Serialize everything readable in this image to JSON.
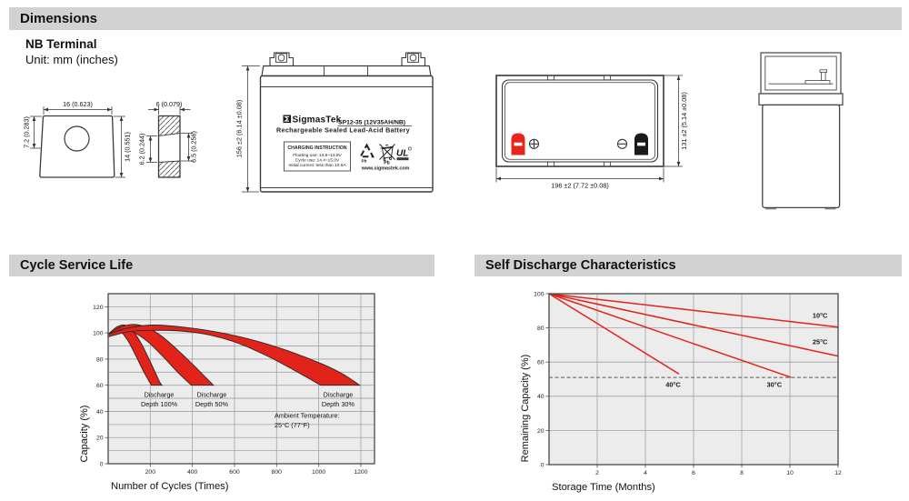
{
  "sections": {
    "dimensions_title": "Dimensions",
    "terminal_type": "NB Terminal",
    "unit_note": "Unit: mm (inches)",
    "cycle_life_title": "Cycle Service Life",
    "self_discharge_title": "Self Discharge Characteristics"
  },
  "colors": {
    "header_bar": "#d2d2d2",
    "chart_red": "#e2231a",
    "red_terminal": "#e8251d",
    "black_terminal": "#1a1a1a",
    "plot_bg": "#ececec",
    "grid_line": "#a3a3a3",
    "plot_border": "#4a4a4a"
  },
  "terminal_drawing": {
    "front": {
      "width_label": "16 (0.623)",
      "left_label": "7.2 (0.283)",
      "right_label": "14 (0.551)"
    },
    "side": {
      "width_label": "6 (0.079)",
      "left_label": "6.2 (0.244)",
      "right_label": "6.5 (0.256)"
    }
  },
  "battery_front": {
    "height_label": "156 ±2 (6.14 ±0.08)",
    "brand": "SigmasTek",
    "model": "SP12-35 (12V35AH/NB)",
    "subtitle": "Rechargeable Sealed Lead-Acid Battery",
    "charging": {
      "title": "CHARGING INSTRUCTION",
      "line1": "Floating use: 13.5~13.8V",
      "line2": "Cycle use: 14.4~15.0V",
      "line3": "Initial current: less than 10.5A"
    },
    "website": "www.sigmastek.com",
    "recycle_pb": "Pb",
    "weee_pb": "Pb",
    "ul_text": "UL"
  },
  "battery_top": {
    "width_label": "196 ±2 (7.72 ±0.08)",
    "height_label": "131 ±2 (5.14 ±0.08)"
  },
  "chart_data": [
    {
      "type": "area",
      "title": "Cycle Service Life",
      "xlabel": "Number of Cycles (Times)",
      "ylabel": "Capacity (%)",
      "xlim": [
        0,
        1265
      ],
      "ylim": [
        0,
        130
      ],
      "xticks": [
        200,
        400,
        600,
        800,
        1000,
        1200
      ],
      "yticks": [
        0,
        20,
        40,
        60,
        80,
        100,
        120
      ],
      "x_grid_step": 200,
      "y_grid_step": 10,
      "grid": true,
      "bands": [
        {
          "name": "Discharge Depth 100%",
          "upper": [
            [
              0,
              99
            ],
            [
              40,
              104.5
            ],
            [
              80,
              106
            ],
            [
              120,
              101
            ],
            [
              160,
              91
            ],
            [
              200,
              78
            ],
            [
              240,
              64
            ],
            [
              255,
              60
            ]
          ],
          "lower": [
            [
              205,
              60
            ],
            [
              170,
              70
            ],
            [
              130,
              83
            ],
            [
              90,
              95
            ],
            [
              50,
              101.5
            ],
            [
              0,
              97
            ]
          ]
        },
        {
          "name": "Discharge Depth 50%",
          "upper": [
            [
              0,
              99
            ],
            [
              60,
              104.5
            ],
            [
              120,
              106.5
            ],
            [
              180,
              104.5
            ],
            [
              250,
              98
            ],
            [
              330,
              87
            ],
            [
              420,
              73
            ],
            [
              500,
              60
            ]
          ],
          "lower": [
            [
              395,
              60
            ],
            [
              330,
              70
            ],
            [
              260,
              82
            ],
            [
              190,
              93
            ],
            [
              120,
              100.5
            ],
            [
              60,
              102.5
            ],
            [
              0,
              97
            ]
          ]
        },
        {
          "name": "Discharge Depth 30%",
          "upper": [
            [
              0,
              99
            ],
            [
              100,
              104
            ],
            [
              220,
              106
            ],
            [
              380,
              104
            ],
            [
              540,
              100
            ],
            [
              700,
              94
            ],
            [
              860,
              86
            ],
            [
              1020,
              76
            ],
            [
              1120,
              68
            ],
            [
              1195,
              60
            ]
          ],
          "lower": [
            [
              1010,
              60
            ],
            [
              900,
              70
            ],
            [
              760,
              82
            ],
            [
              620,
              92
            ],
            [
              480,
              98.5
            ],
            [
              340,
              101.5
            ],
            [
              200,
              102
            ],
            [
              100,
              101
            ],
            [
              0,
              97
            ]
          ]
        }
      ],
      "annotations": [
        {
          "lines": [
            "Discharge",
            "Depth 100%"
          ],
          "x": 242,
          "y": 51,
          "align": "middle"
        },
        {
          "lines": [
            "Discharge",
            "Depth 50%"
          ],
          "x": 492,
          "y": 51,
          "align": "middle"
        },
        {
          "lines": [
            "Discharge",
            "Depth 30%"
          ],
          "x": 1092,
          "y": 51,
          "align": "middle"
        },
        {
          "lines": [
            "Ambient Temperature:",
            "25°C (77°F)"
          ],
          "x": 790,
          "y": 35,
          "align": "left"
        }
      ]
    },
    {
      "type": "line",
      "title": "Self Discharge Characteristics",
      "xlabel": "Storage Time (Months)",
      "ylabel": "Remaining Capacity (%)",
      "xlim": [
        0,
        12
      ],
      "ylim": [
        0,
        100
      ],
      "xticks": [
        2,
        4,
        6,
        8,
        10,
        12
      ],
      "yticks": [
        0,
        20,
        40,
        60,
        80,
        100
      ],
      "x_grid_step": 2,
      "y_grid_step": 20,
      "grid": true,
      "dashed_line_y": 51,
      "series": [
        {
          "name": "10°C",
          "points": [
            [
              0,
              100
            ],
            [
              12,
              80.5
            ]
          ],
          "label_x": 11.25,
          "label_y": 86
        },
        {
          "name": "25°C",
          "points": [
            [
              0,
              100
            ],
            [
              12,
              63.5
            ]
          ],
          "label_x": 11.25,
          "label_y": 70.5
        },
        {
          "name": "30°C",
          "points": [
            [
              0,
              100
            ],
            [
              10.05,
              51
            ]
          ],
          "label_x": 9.35,
          "label_y": 45.5
        },
        {
          "name": "40°C",
          "points": [
            [
              0,
              100
            ],
            [
              5.4,
              53
            ]
          ],
          "label_x": 5.15,
          "label_y": 45.5
        }
      ]
    }
  ]
}
